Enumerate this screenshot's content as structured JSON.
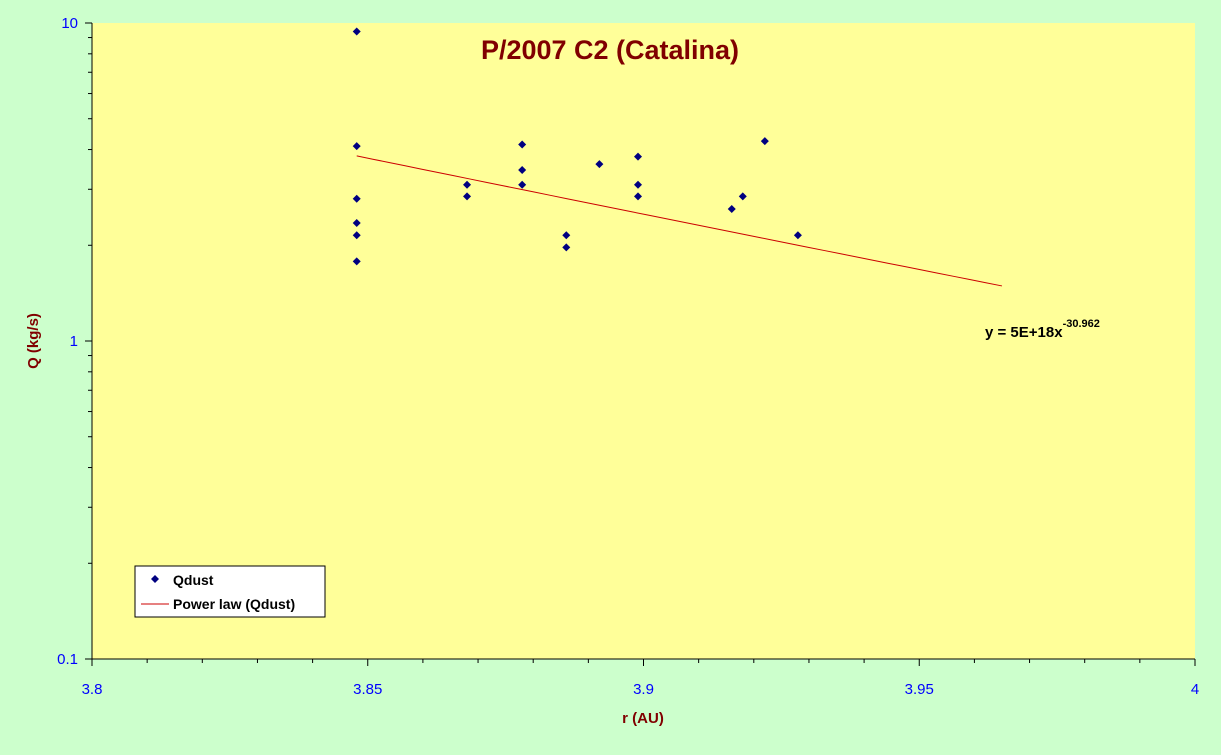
{
  "chart_data": {
    "type": "scatter",
    "title": "P/2007 C2 (Catalina)",
    "xlabel": "r (AU)",
    "ylabel": "Q (kg/s)",
    "xlim": [
      3.8,
      4.0
    ],
    "ylim": [
      0.1,
      10
    ],
    "yscale": "log",
    "grid": false,
    "x_ticks": [
      "3.8",
      "3.85",
      "3.9",
      "3.95",
      "4"
    ],
    "y_ticks": [
      "0.1",
      "1",
      "10"
    ],
    "legend_position": "bottom-left",
    "series": [
      {
        "name": "Qdust",
        "color": "#000080",
        "marker": "diamond",
        "points": [
          [
            3.848,
            9.4
          ],
          [
            3.848,
            4.1
          ],
          [
            3.848,
            2.8
          ],
          [
            3.848,
            2.35
          ],
          [
            3.848,
            2.15
          ],
          [
            3.848,
            1.78
          ],
          [
            3.868,
            3.1
          ],
          [
            3.868,
            2.85
          ],
          [
            3.878,
            4.15
          ],
          [
            3.878,
            3.45
          ],
          [
            3.878,
            3.1
          ],
          [
            3.886,
            2.15
          ],
          [
            3.886,
            1.97
          ],
          [
            3.892,
            3.6
          ],
          [
            3.899,
            3.8
          ],
          [
            3.899,
            3.1
          ],
          [
            3.899,
            2.85
          ],
          [
            3.916,
            2.6
          ],
          [
            3.918,
            2.85
          ],
          [
            3.922,
            4.25
          ],
          [
            3.928,
            2.15
          ]
        ]
      }
    ],
    "trendline": {
      "name": "Power law (Qdust)",
      "color": "#cc0000",
      "x_range": [
        3.848,
        3.965
      ],
      "endpoints_y": [
        3.82,
        1.49
      ]
    },
    "equation": {
      "text": "y = 5E+18x",
      "exponent": "-30.962"
    }
  }
}
